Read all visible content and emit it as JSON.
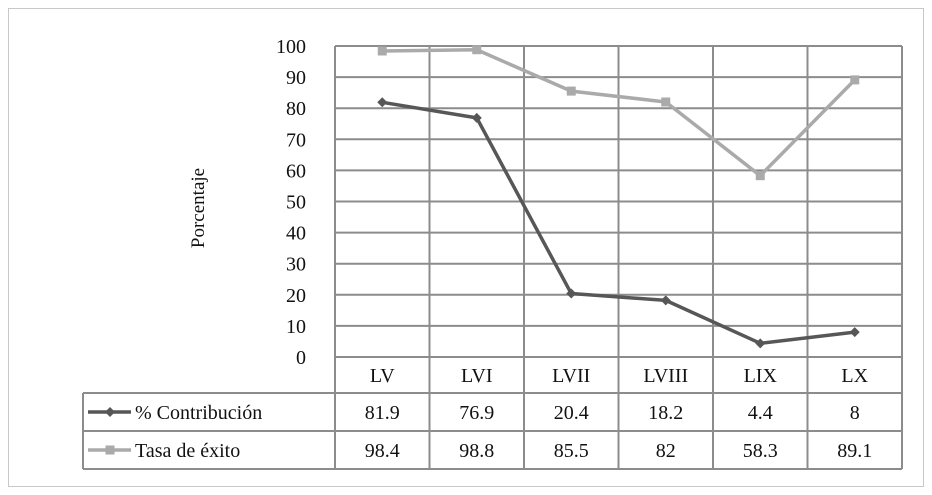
{
  "chart_data": {
    "type": "line",
    "title": "",
    "xlabel": "",
    "ylabel": "Porcentaje",
    "ylim": [
      0,
      100
    ],
    "yticks": [
      0,
      10,
      20,
      30,
      40,
      50,
      60,
      70,
      80,
      90,
      100
    ],
    "grid": true,
    "legend": "data-table-left",
    "categories": [
      "LV",
      "LVI",
      "LVII",
      "LVIII",
      "LIX",
      "LX"
    ],
    "series": [
      {
        "name": "% Contribución",
        "values": [
          81.9,
          76.9,
          20.4,
          18.2,
          4.4,
          8
        ],
        "values_text": [
          "81.9",
          "76.9",
          "20.4",
          "18.2",
          "4.4",
          "8"
        ],
        "color": "#575757",
        "marker": "diamond"
      },
      {
        "name": "Tasa de éxito",
        "values": [
          98.4,
          98.8,
          85.5,
          82,
          58.3,
          89.1
        ],
        "values_text": [
          "98.4",
          "98.8",
          "85.5",
          "82",
          "58.3",
          "89.1"
        ],
        "color": "#aaaaaa",
        "marker": "square"
      }
    ]
  }
}
